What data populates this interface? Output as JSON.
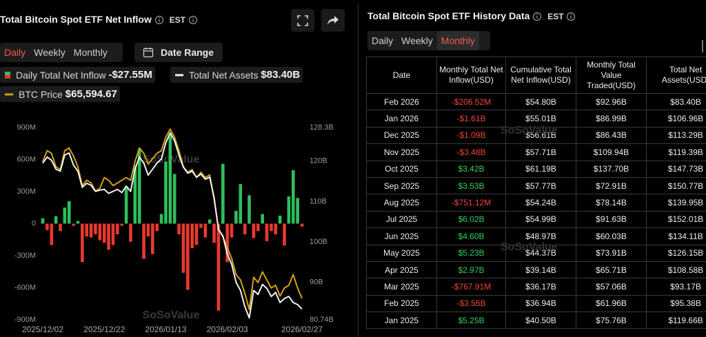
{
  "chart_data": {
    "type": "bar",
    "title": "Total Bitcoin Spot ETF Net Inflow",
    "timezone": "EST",
    "tabs": [
      "Daily",
      "Weekly",
      "Monthly"
    ],
    "active_tab": 0,
    "date_range": "Date Range",
    "watermark": "SoSoValue",
    "grid": false,
    "categories": [
      "2025/12/02",
      null,
      null,
      null,
      null,
      null,
      null,
      null,
      null,
      null,
      null,
      null,
      null,
      null,
      "2025/12/22",
      null,
      null,
      null,
      null,
      null,
      null,
      null,
      null,
      null,
      null,
      null,
      null,
      null,
      "2026/01/13",
      null,
      null,
      null,
      null,
      null,
      null,
      null,
      null,
      null,
      null,
      null,
      null,
      null,
      "2026/02/03",
      null,
      null,
      null,
      null,
      null,
      null,
      null,
      null,
      null,
      null,
      null,
      null,
      null,
      null,
      null,
      null,
      "2026/02/27"
    ],
    "ylim": [
      -900,
      900
    ],
    "yticks": [
      {
        "value": 900,
        "label": "900M"
      },
      {
        "value": 600,
        "label": "600M"
      },
      {
        "value": 300,
        "label": "300M"
      },
      0,
      {
        "value": -300,
        "label": "-300M"
      },
      {
        "value": -600,
        "label": "-600M"
      },
      {
        "value": -900,
        "label": "-900M"
      }
    ],
    "y2lim": [
      80.74,
      128.3
    ],
    "y2ticks": [
      {
        "value": 128.3,
        "label": "128.3B"
      },
      {
        "value": 120,
        "label": "120B"
      },
      {
        "value": 110,
        "label": "110B"
      },
      {
        "value": 100,
        "label": "100B"
      },
      {
        "value": 90,
        "label": "90B"
      },
      {
        "value": 80.74,
        "label": "80.74B"
      }
    ],
    "y3lim": [
      61600,
      97300
    ],
    "series": [
      {
        "name": "Daily Total Net Inflow",
        "type": "bar",
        "color": "#2fbf5b",
        "negative_color": "#e8392f",
        "latest_label": "-$27.55M",
        "values": [
          50,
          -60,
          -200,
          70,
          -70,
          150,
          210,
          -20,
          25,
          -360,
          -120,
          -130,
          -100,
          -155,
          -180,
          -245,
          -200,
          -100,
          -20,
          335,
          -170,
          545,
          700,
          -330,
          -120,
          -285,
          -70,
          90,
          580,
          845,
          465,
          -100,
          -460,
          -620,
          -230,
          -200,
          -40,
          -130,
          40,
          -180,
          -815,
          560,
          -360,
          -130,
          120,
          370,
          -100,
          265,
          -135,
          -70,
          90,
          -165,
          -70,
          -100,
          75,
          -205,
          255,
          500,
          240,
          -27.55
        ]
      },
      {
        "name": "Total Net Assets",
        "type": "line",
        "axis": "y2",
        "color": "#f2f2f2",
        "latest_label": "$83.40B",
        "values": [
          119.5,
          121.0,
          120.2,
          118.0,
          117.5,
          121.5,
          122.0,
          119.0,
          117.5,
          113.5,
          114.5,
          114.0,
          112.5,
          112.8,
          113.0,
          112.0,
          112.5,
          113.0,
          112.2,
          113.8,
          112.5,
          118.0,
          121.0,
          119.5,
          116.5,
          118.0,
          119.5,
          120.5,
          124.5,
          127.0,
          125.0,
          121.5,
          118.5,
          117.0,
          117.5,
          116.0,
          116.8,
          115.5,
          116.0,
          111.0,
          103.0,
          101.5,
          97.0,
          94.5,
          90.0,
          88.0,
          84.0,
          81.2,
          88.0,
          87.0,
          89.5,
          88.5,
          86.5,
          87.5,
          85.0,
          86.0,
          86.5,
          85.0,
          84.5,
          83.4
        ]
      },
      {
        "name": "BTC Price",
        "type": "line",
        "axis": "y3",
        "color": "#d4a017",
        "latest_label": "$65,594.67",
        "values": [
          91000,
          93000,
          92500,
          90000,
          89500,
          93000,
          93500,
          92000,
          90000,
          86500,
          87500,
          87000,
          85500,
          86000,
          88000,
          87500,
          86500,
          87000,
          87500,
          88000,
          87500,
          91000,
          93500,
          92500,
          90500,
          91500,
          92500,
          93000,
          95500,
          97000,
          95500,
          93000,
          90000,
          89000,
          89500,
          88000,
          89000,
          88000,
          88500,
          84000,
          78500,
          77000,
          75000,
          73000,
          70000,
          69000,
          66500,
          63500,
          69500,
          68500,
          70500,
          69000,
          67500,
          68000,
          66000,
          67500,
          68000,
          70000,
          67500,
          65594.67
        ]
      }
    ]
  },
  "table": {
    "title": "Total Bitcoin Spot ETF History Data",
    "timezone": "EST",
    "tabs": [
      "Daily",
      "Weekly",
      "Monthly"
    ],
    "active_tab": 2,
    "watermark": "SoSoValue",
    "columns": [
      "Date",
      "Monthly Total Net Inflow(USD)",
      "Cumulative Total Net Inflow(USD)",
      "Monthly Total Value Traded(USD)",
      "Total Net Assets(USD)"
    ],
    "rows": [
      [
        "Feb 2026",
        "-$206.52M",
        "$54.80B",
        "$92.96B",
        "$83.40B"
      ],
      [
        "Jan 2026",
        "-$1.61B",
        "$55.01B",
        "$86.99B",
        "$106.96B"
      ],
      [
        "Dec 2025",
        "-$1.09B",
        "$56.61B",
        "$86.43B",
        "$113.29B"
      ],
      [
        "Nov 2025",
        "-$3.48B",
        "$57.71B",
        "$109.94B",
        "$119.39B"
      ],
      [
        "Oct 2025",
        "$3.42B",
        "$61.19B",
        "$137.70B",
        "$147.73B"
      ],
      [
        "Sep 2025",
        "$3.53B",
        "$57.77B",
        "$72.91B",
        "$150.77B"
      ],
      [
        "Aug 2025",
        "-$751.12M",
        "$54.24B",
        "$78.14B",
        "$139.95B"
      ],
      [
        "Jul 2025",
        "$6.02B",
        "$54.99B",
        "$91.63B",
        "$152.01B"
      ],
      [
        "Jun 2025",
        "$4.60B",
        "$48.97B",
        "$60.03B",
        "$134.11B"
      ],
      [
        "May 2025",
        "$5.23B",
        "$44.37B",
        "$73.91B",
        "$126.15B"
      ],
      [
        "Apr 2025",
        "$2.97B",
        "$39.14B",
        "$65.71B",
        "$108.58B"
      ],
      [
        "Mar 2025",
        "-$767.91M",
        "$36.17B",
        "$57.06B",
        "$93.17B"
      ],
      [
        "Feb 2025",
        "-$3.56B",
        "$36.94B",
        "$61.96B",
        "$95.38B"
      ],
      [
        "Jan 2025",
        "$5.25B",
        "$40.50B",
        "$75.76B",
        "$119.66B"
      ]
    ]
  }
}
